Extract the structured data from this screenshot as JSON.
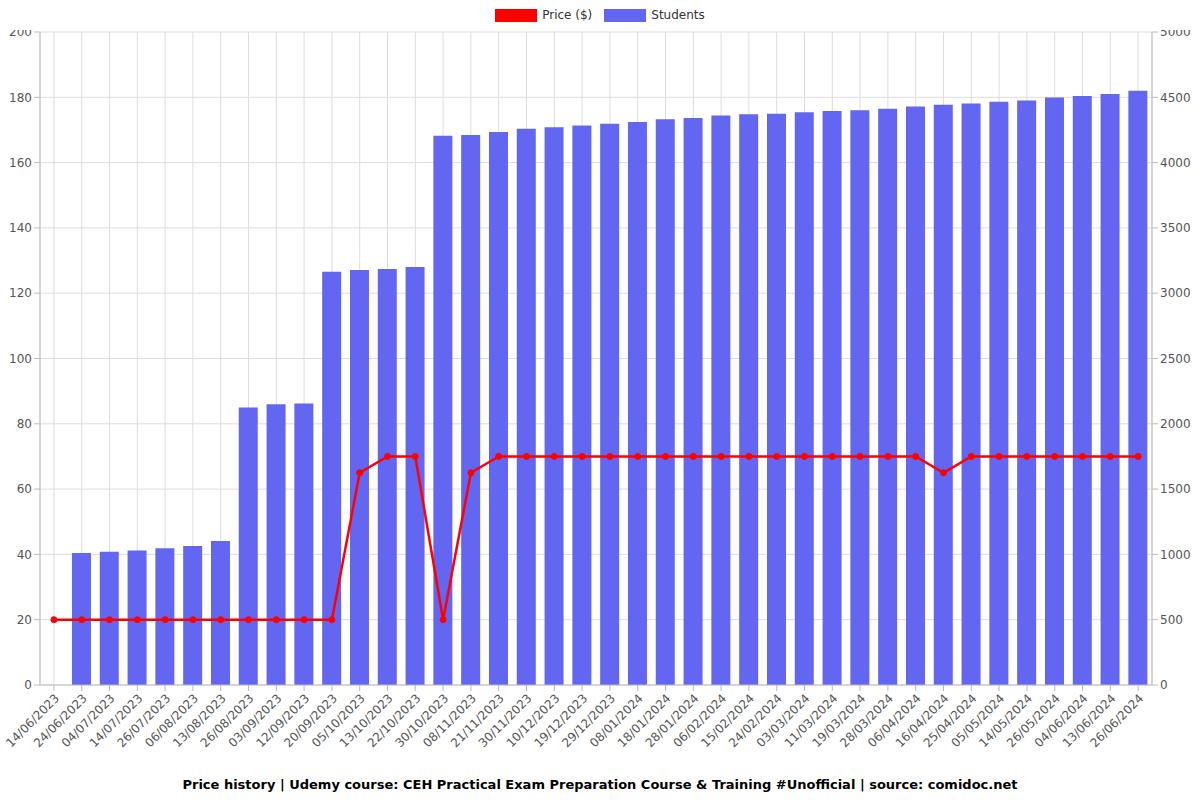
{
  "chart_data": {
    "type": "bar",
    "title": "Price history | Udemy course: CEH Practical Exam Preparation Course & Training #Unofficial | source: comidoc.net",
    "categories": [
      "14/06/2023",
      "24/06/2023",
      "04/07/2023",
      "14/07/2023",
      "26/07/2023",
      "06/08/2023",
      "13/08/2023",
      "26/08/2023",
      "03/09/2023",
      "12/09/2023",
      "20/09/2023",
      "05/10/2023",
      "13/10/2023",
      "22/10/2023",
      "30/10/2023",
      "08/11/2023",
      "21/11/2023",
      "30/11/2023",
      "10/12/2023",
      "19/12/2023",
      "29/12/2023",
      "08/01/2024",
      "18/01/2024",
      "28/01/2024",
      "06/02/2024",
      "15/02/2024",
      "24/02/2024",
      "03/03/2024",
      "11/03/2024",
      "19/03/2024",
      "28/03/2024",
      "06/04/2024",
      "16/04/2024",
      "25/04/2024",
      "05/05/2024",
      "14/05/2024",
      "26/05/2024",
      "04/06/2024",
      "13/06/2024",
      "26/06/2024"
    ],
    "series": [
      {
        "name": "Price ($)",
        "type": "line",
        "color": "#ff0000",
        "marker": "circle",
        "values": [
          20,
          20,
          20,
          20,
          20,
          20,
          20,
          20,
          20,
          20,
          20,
          65,
          70,
          70,
          20,
          65,
          70,
          70,
          70,
          70,
          70,
          70,
          70,
          70,
          70,
          70,
          70,
          70,
          70,
          70,
          70,
          70,
          65,
          70,
          70,
          70,
          70,
          70,
          70,
          70
        ]
      },
      {
        "name": "Students",
        "type": "bar",
        "axis": "y2",
        "color": "#6366f1",
        "values": [
          null,
          1010,
          1020,
          1030,
          1048,
          1065,
          1102,
          2125,
          2150,
          2155,
          3165,
          3177,
          3185,
          3200,
          4205,
          4212,
          4235,
          4260,
          4270,
          4285,
          4297,
          4310,
          4332,
          4342,
          4360,
          4370,
          4375,
          4385,
          4395,
          4400,
          4412,
          4430,
          4443,
          4453,
          4465,
          4475,
          4498,
          4510,
          4525,
          4550
        ]
      }
    ],
    "ylim": [
      0,
      200
    ],
    "yticks": [
      0,
      20,
      40,
      60,
      80,
      100,
      120,
      140,
      160,
      180,
      200
    ],
    "y2lim": [
      0,
      5000
    ],
    "y2ticks": [
      0,
      500,
      1000,
      1500,
      2000,
      2500,
      3000,
      3500,
      4000,
      4500,
      5000
    ],
    "grid": true,
    "legend": "top"
  }
}
